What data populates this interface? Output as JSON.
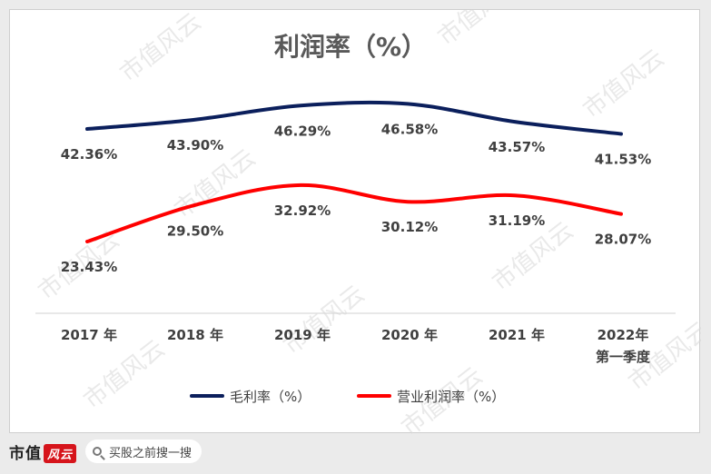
{
  "chart_data": {
    "type": "line",
    "title": "利润率（%）",
    "categories": [
      "2017年",
      "2018年",
      "2019年",
      "2020年",
      "2021年",
      "2022年第一季度"
    ],
    "category_lines": [
      [
        "2017 年"
      ],
      [
        "2018 年"
      ],
      [
        "2019 年"
      ],
      [
        "2020 年"
      ],
      [
        "2021 年"
      ],
      [
        "2022年",
        "第一季度"
      ]
    ],
    "series": [
      {
        "name": "毛利率（%）",
        "values": [
          42.36,
          43.9,
          46.29,
          46.58,
          43.57,
          41.53
        ],
        "labels": [
          "42.36%",
          "43.90%",
          "46.29%",
          "46.58%",
          "43.57%",
          "41.53%"
        ],
        "color": "#0b1f5c"
      },
      {
        "name": "营业利润率（%）",
        "values": [
          23.43,
          29.5,
          32.92,
          30.12,
          31.19,
          28.07
        ],
        "labels": [
          "23.43%",
          "29.50%",
          "32.92%",
          "30.12%",
          "31.19%",
          "28.07%"
        ],
        "color": "#ff0000"
      }
    ],
    "legend": "bottom",
    "grid": false
  },
  "footer": {
    "brand": "市值",
    "brand_badge": "风云",
    "search_placeholder": "买股之前搜一搜"
  },
  "watermark_text": "市值风云"
}
